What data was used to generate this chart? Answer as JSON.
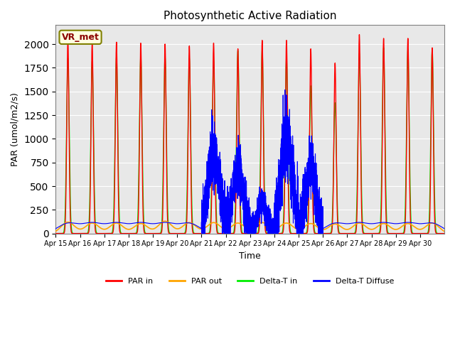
{
  "title": "Photosynthetic Active Radiation",
  "ylabel": "PAR (umol/m2/s)",
  "xlabel": "Time",
  "annotation": "VR_met",
  "ylim": [
    0,
    2200
  ],
  "xlim": [
    0,
    16
  ],
  "background_color": "#e8e8e8",
  "colors": {
    "PAR_in": "#ff0000",
    "PAR_out": "#ffa500",
    "Delta_T_in": "#00ee00",
    "Delta_T_diffuse": "#0000ff"
  },
  "legend_labels": [
    "PAR in",
    "PAR out",
    "Delta-T in",
    "Delta-T Diffuse"
  ],
  "x_tick_labels": [
    "Apr 15",
    "Apr 16",
    "Apr 17",
    "Apr 18",
    "Apr 19",
    "Apr 20",
    "Apr 21",
    "Apr 22",
    "Apr 23",
    "Apr 24",
    "Apr 25",
    "Apr 26",
    "Apr 27",
    "Apr 28",
    "Apr 29",
    "Apr 30"
  ],
  "num_days": 16,
  "day_peaks_red": [
    2050,
    2020,
    2020,
    2010,
    2000,
    1980,
    2010,
    1950,
    2040,
    2040,
    1950,
    1800,
    2100,
    2060,
    2060,
    1960
  ],
  "day_peaks_green": [
    1850,
    1820,
    1870,
    1870,
    1870,
    1850,
    1830,
    1930,
    1940,
    1860,
    1560,
    1380,
    1900,
    1960,
    1940,
    1940
  ],
  "orange_peak": 120,
  "orange_sigma": 0.28,
  "red_sigma": 0.045,
  "green_sigma": 0.055,
  "blue_flat_level": 105,
  "blue_flat_sigma": 0.42,
  "cloudy_day_indices": [
    6,
    7,
    8,
    9,
    10
  ],
  "cloudy_peaks": [
    800,
    650,
    310,
    950,
    700
  ],
  "cloudy_noises": [
    120,
    100,
    60,
    150,
    110
  ],
  "cloudy_sigmas": [
    0.22,
    0.2,
    0.18,
    0.22,
    0.2
  ],
  "title_fontsize": 11,
  "tick_fontsize": 7,
  "label_fontsize": 9,
  "legend_fontsize": 8
}
